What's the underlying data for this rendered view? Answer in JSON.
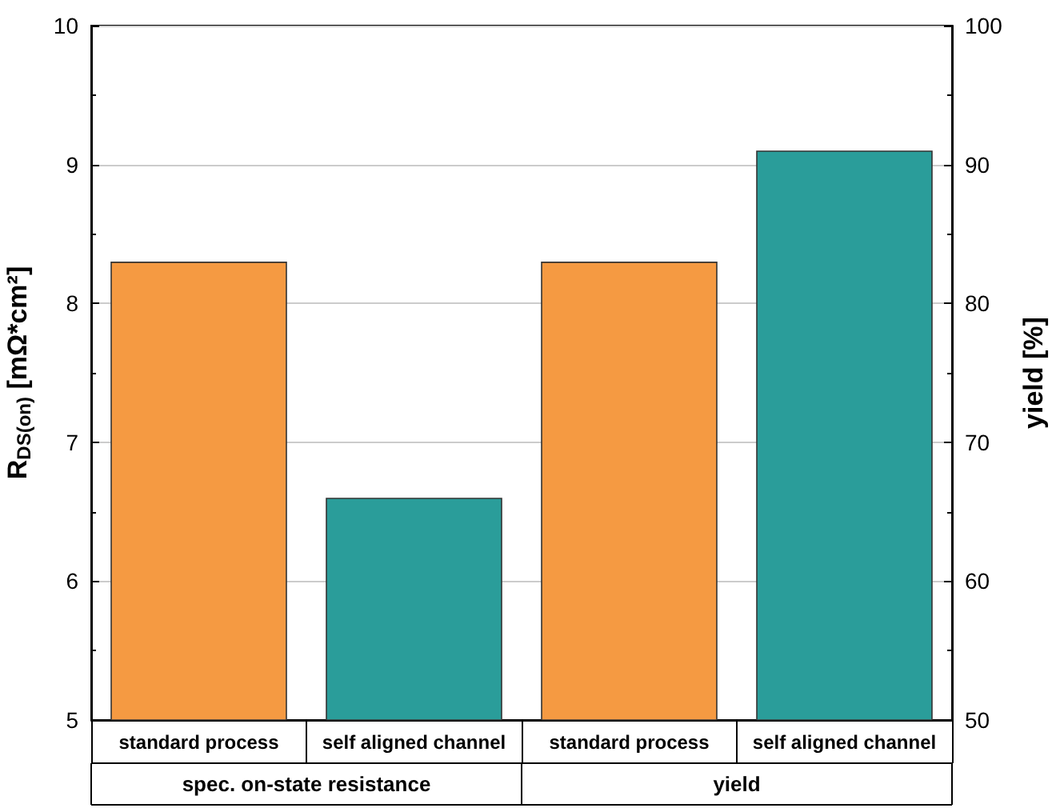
{
  "chart_data": {
    "type": "bar",
    "categories": [
      "standard process",
      "self aligned channel",
      "standard process",
      "self aligned channel"
    ],
    "series": [
      {
        "colors": [
          "#f59a42",
          "#2a9d9a",
          null,
          null
        ],
        "values": [
          8.3,
          6.6,
          null,
          null
        ]
      },
      {
        "axis": "y2",
        "colors": [
          null,
          null,
          "#f59a42",
          "#2a9d9a"
        ],
        "values": [
          null,
          null,
          83,
          91
        ]
      }
    ],
    "ylabel": "R$_{DS(on)}$ [mΩ*cm²]",
    "y2label": "yield [%]",
    "ylim": [
      5,
      10
    ],
    "yticks": [
      5,
      6,
      7,
      8,
      9,
      10
    ],
    "y2lim": [
      50,
      100
    ],
    "y2ticks": [
      50,
      60,
      70,
      80,
      90,
      100
    ],
    "grid": "y",
    "annotations": [
      "spec. on-state resistance",
      "yield"
    ]
  }
}
